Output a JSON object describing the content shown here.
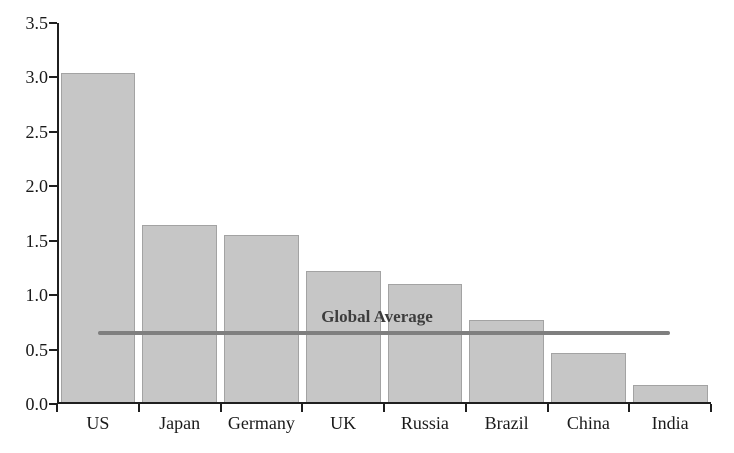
{
  "chart_data": {
    "type": "bar",
    "categories": [
      "US",
      "Japan",
      "Germany",
      "UK",
      "Russia",
      "Brazil",
      "China",
      "India"
    ],
    "values": [
      3.02,
      1.63,
      1.53,
      1.2,
      1.08,
      0.75,
      0.45,
      0.16
    ],
    "title": "",
    "xlabel": "",
    "ylabel": "",
    "ylim": [
      0,
      3.5
    ],
    "yticks": [
      0,
      0.5,
      1,
      1.5,
      2,
      2.5,
      3,
      3.5
    ],
    "ytick_labels": [
      "0.0",
      "0.5",
      "1.0",
      "1.5",
      "2.0",
      "2.5",
      "3.0",
      "3.5"
    ],
    "grid": false,
    "legend_position": "none",
    "annotation": {
      "label": "Global Average",
      "value": 0.65,
      "span_from_category": "US",
      "span_to_category": "India"
    },
    "colors": {
      "background": "#ffffff",
      "bar_fill": "#c6c6c6",
      "bar_border": "#a3a3a3",
      "axis": "#1f1f1f",
      "tick_text": "#1a1a1a",
      "average_line": "#7f7f7f",
      "annotation_text": "#3d3d3d"
    }
  }
}
